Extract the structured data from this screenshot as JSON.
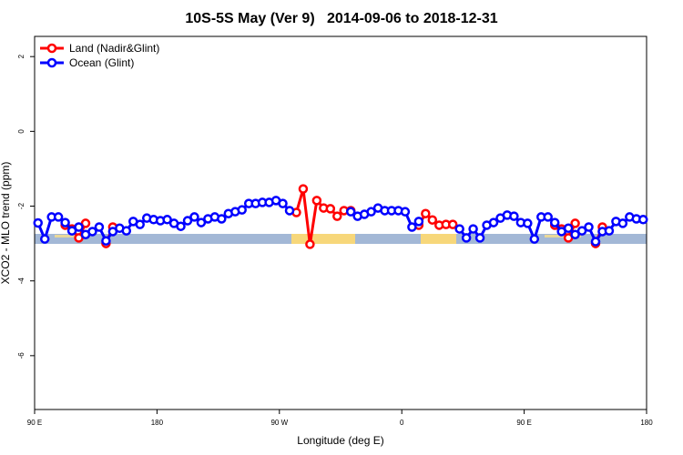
{
  "chart_data": {
    "type": "line",
    "title": "10S-5S May (Ver 9)   2014-09-06 to 2018-12-31",
    "xlabel": "Longitude (deg E)",
    "ylabel": "XCO2 - MLO trend (ppm)",
    "xlim": [
      90,
      540
    ],
    "ylim": [
      -7.44,
      2.54
    ],
    "xticks": [
      {
        "value": 90,
        "label": "90 E"
      },
      180,
      {
        "value": 270,
        "label": "90 W"
      },
      {
        "value": 360,
        "label": "0"
      },
      {
        "value": 450,
        "label": "90 E"
      },
      {
        "value": 540,
        "label": "180"
      }
    ],
    "yticks": [
      2,
      0,
      -2,
      -4,
      -6
    ],
    "legend": "top-left",
    "x": [
      92.5,
      97.5,
      102.5,
      107.5,
      112.5,
      117.5,
      122.5,
      127.5,
      132.5,
      137.5,
      142.5,
      147.5,
      152.5,
      157.5,
      162.5,
      167.5,
      172.5,
      177.5,
      182.5,
      187.5,
      192.5,
      197.5,
      202.5,
      207.5,
      212.5,
      217.5,
      222.5,
      227.5,
      232.5,
      237.5,
      242.5,
      247.5,
      252.5,
      257.5,
      262.5,
      267.5,
      272.5,
      277.5,
      282.5,
      287.5,
      292.5,
      297.5,
      302.5,
      307.5,
      312.5,
      317.5,
      322.5,
      327.5,
      332.5,
      337.5,
      342.5,
      347.5,
      352.5,
      357.5,
      362.5,
      367.5,
      372.5,
      377.5,
      382.5,
      387.5,
      392.5,
      397.5,
      402.5,
      407.5,
      412.5,
      417.5,
      422.5,
      427.5,
      432.5,
      437.5,
      442.5,
      447.5,
      452.5,
      457.5,
      462.5,
      467.5,
      472.5,
      477.5,
      482.5,
      487.5,
      492.5,
      497.5,
      502.5,
      507.5,
      512.5,
      517.5,
      522.5,
      527.5,
      532.5,
      537.5
    ],
    "series": [
      {
        "name": "Land (Nadir&Glint)",
        "color": "#ff0000",
        "values": [
          null,
          null,
          null,
          null,
          -2.51,
          -2.61,
          -2.85,
          -2.46,
          null,
          null,
          -3.0,
          -2.56,
          null,
          null,
          null,
          null,
          null,
          null,
          null,
          null,
          null,
          null,
          null,
          null,
          null,
          null,
          null,
          null,
          null,
          null,
          null,
          null,
          null,
          null,
          null,
          null,
          null,
          null,
          -2.17,
          -1.54,
          -3.02,
          -1.85,
          -2.05,
          -2.07,
          -2.27,
          -2.12,
          -2.12,
          null,
          null,
          null,
          null,
          null,
          null,
          null,
          null,
          null,
          -2.51,
          -2.2,
          -2.37,
          -2.51,
          -2.49,
          -2.49,
          null,
          null,
          null,
          null,
          null,
          null,
          null,
          null,
          null,
          null,
          null,
          null,
          null,
          null,
          -2.51,
          -2.61,
          -2.85,
          -2.46,
          null,
          null,
          -3.0,
          -2.56,
          null,
          null,
          null,
          null,
          null,
          null
        ]
      },
      {
        "name": "Ocean (Glint)",
        "color": "#0000ff",
        "values": [
          -2.45,
          -2.88,
          -2.29,
          -2.29,
          -2.44,
          -2.66,
          -2.56,
          -2.76,
          -2.68,
          -2.56,
          -2.93,
          -2.68,
          -2.59,
          -2.66,
          -2.41,
          -2.49,
          -2.32,
          -2.36,
          -2.39,
          -2.36,
          -2.46,
          -2.54,
          -2.39,
          -2.29,
          -2.44,
          -2.34,
          -2.29,
          -2.34,
          -2.2,
          -2.15,
          -2.1,
          -1.93,
          -1.93,
          -1.9,
          -1.9,
          -1.85,
          -1.93,
          -2.12,
          null,
          null,
          null,
          null,
          null,
          null,
          null,
          null,
          -2.15,
          -2.27,
          -2.22,
          -2.15,
          -2.05,
          -2.12,
          -2.12,
          -2.12,
          -2.15,
          -2.56,
          -2.41,
          null,
          null,
          null,
          null,
          null,
          -2.61,
          -2.85,
          -2.61,
          -2.85,
          -2.51,
          -2.44,
          -2.32,
          -2.24,
          -2.27,
          -2.44,
          -2.46,
          -2.88,
          -2.29,
          -2.29,
          -2.44,
          -2.68,
          -2.59,
          -2.76,
          -2.66,
          -2.56,
          -2.95,
          -2.68,
          -2.66,
          -2.41,
          -2.46,
          -2.29,
          -2.34,
          -2.36
        ]
      }
    ]
  }
}
